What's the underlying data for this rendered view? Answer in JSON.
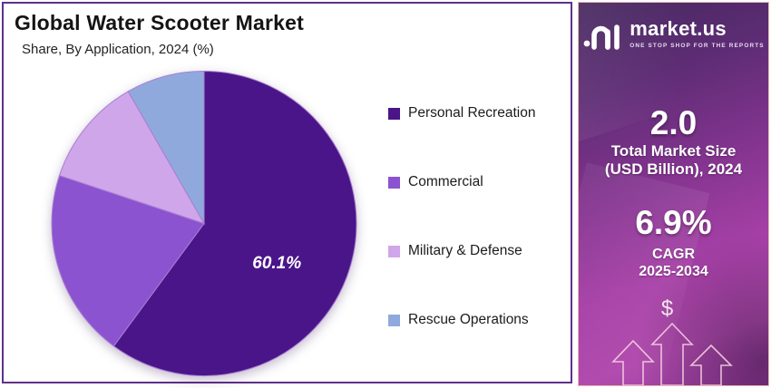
{
  "header": {
    "title": "Global Water Scooter Market",
    "subtitle": "Share, By Application, 2024 (%)"
  },
  "chart_data": {
    "type": "pie",
    "title": "Global Water Scooter Market",
    "subtitle": "Share, By Application, 2024 (%)",
    "start_angle_deg": 0,
    "direction": "clockwise",
    "legend_position": "right",
    "slices": [
      {
        "name": "Personal Recreation",
        "value": 60.1,
        "color": "#4a1588",
        "label": "60.1%",
        "estimated": false
      },
      {
        "name": "Commercial",
        "value": 20.0,
        "color": "#8c53d0",
        "label": "",
        "estimated": true
      },
      {
        "name": "Military & Defense",
        "value": 11.6,
        "color": "#d0a6ea",
        "label": "",
        "estimated": true
      },
      {
        "name": "Rescue Operations",
        "value": 8.3,
        "color": "#90a9dd",
        "label": "",
        "estimated": true
      }
    ],
    "slice_stroke_color": "#a77fd2",
    "data_label_color": "#ffffff"
  },
  "sidebar": {
    "brand": {
      "name": "market.us",
      "tagline": "ONE STOP SHOP FOR THE REPORTS"
    },
    "stats": [
      {
        "value": "2.0",
        "label_lines": [
          "Total Market Size",
          "(USD Billion), 2024"
        ]
      },
      {
        "value": "6.9%",
        "label_lines": [
          "CAGR",
          "2025-2034"
        ]
      }
    ],
    "dollar_symbol": "$",
    "colors": {
      "gradient_top": "#46285f",
      "gradient_bottom": "#9c3da2",
      "border": "#e9b6b0"
    }
  },
  "panel": {
    "border_color": "#5e2f8a"
  }
}
